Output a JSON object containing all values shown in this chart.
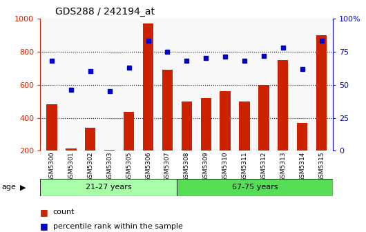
{
  "title": "GDS288 / 242194_at",
  "categories": [
    "GSM5300",
    "GSM5301",
    "GSM5302",
    "GSM5303",
    "GSM5305",
    "GSM5306",
    "GSM5307",
    "GSM5308",
    "GSM5309",
    "GSM5310",
    "GSM5311",
    "GSM5312",
    "GSM5313",
    "GSM5314",
    "GSM5315"
  ],
  "bar_values": [
    480,
    215,
    340,
    205,
    435,
    970,
    690,
    500,
    520,
    560,
    500,
    600,
    750,
    370,
    900
  ],
  "dot_values": [
    68,
    46,
    60,
    45,
    63,
    83,
    75,
    68,
    70,
    71,
    68,
    72,
    78,
    62,
    83
  ],
  "bar_color": "#cc2200",
  "dot_color": "#0000cc",
  "group1_label": "21-27 years",
  "group2_label": "67-75 years",
  "group1_count": 7,
  "group2_count": 8,
  "group1_color": "#aaffaa",
  "group2_color": "#55dd55",
  "ylim_left": [
    200,
    1000
  ],
  "ylim_right": [
    0,
    100
  ],
  "yticks_left": [
    200,
    400,
    600,
    800,
    1000
  ],
  "yticks_right": [
    0,
    25,
    50,
    75,
    100
  ],
  "ytick_right_labels": [
    "0",
    "25",
    "50",
    "75",
    "100%"
  ],
  "grid_lines": [
    400,
    600,
    800
  ],
  "legend_items": [
    "count",
    "percentile rank within the sample"
  ],
  "background_color": "#ffffff"
}
